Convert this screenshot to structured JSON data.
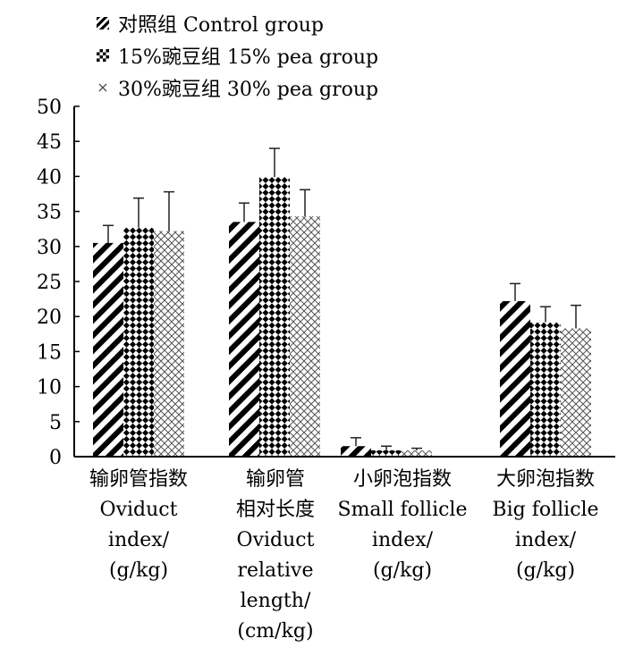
{
  "chart_data": {
    "type": "bar",
    "ylim": [
      0,
      50
    ],
    "yticks": [
      "0",
      "5",
      "10",
      "15",
      "20",
      "25",
      "30",
      "35",
      "40",
      "45",
      "50"
    ],
    "categories": [
      {
        "zh": "输卵管指数",
        "en": "Oviduct index/ (g/kg)"
      },
      {
        "zh": "输卵管相对长度",
        "en": "Oviduct relative length/ (cm/kg)"
      },
      {
        "zh": "小卵泡指数",
        "en": "Small follicle index/ (g/kg)"
      },
      {
        "zh": "大卵泡指数",
        "en": "Big follicle index/ (g/kg)"
      }
    ],
    "series": [
      {
        "name": "对照组 Control group",
        "pattern": "diagonal-stripes",
        "values": [
          30.5,
          33.5,
          1.5,
          22.2
        ],
        "errors": [
          2.5,
          2.7,
          1.2,
          2.5
        ]
      },
      {
        "name": "15%豌豆组 15% pea group",
        "pattern": "checkerboard",
        "values": [
          32.7,
          39.9,
          0.9,
          19.2
        ],
        "errors": [
          4.2,
          4.1,
          0.6,
          2.2
        ]
      },
      {
        "name": "30%豌豆组 30% pea group",
        "pattern": "crosshatch",
        "values": [
          32.2,
          34.3,
          0.9,
          18.3
        ],
        "errors": [
          5.6,
          3.8,
          0.3,
          3.3
        ]
      }
    ]
  },
  "x_labels": [
    {
      "lines": [
        "输卵管指数",
        "Oviduct",
        "index/",
        "(g/kg)"
      ]
    },
    {
      "lines": [
        "输卵管",
        "相对长度",
        "Oviduct",
        "relative",
        "length/",
        "(cm/kg)"
      ]
    },
    {
      "lines": [
        "小卵泡指数",
        "Small follicle",
        "index/",
        "(g/kg)"
      ]
    },
    {
      "lines": [
        "大卵泡指数",
        "Big follicle",
        "index/",
        "(g/kg)"
      ]
    }
  ]
}
